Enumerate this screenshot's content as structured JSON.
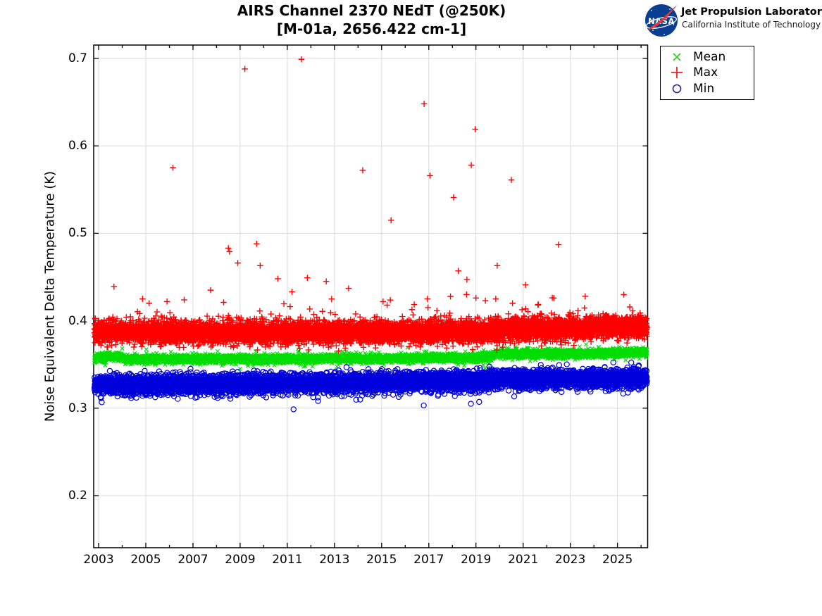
{
  "header": {
    "title": "AIRS Channel 2370 NEdT (@250K)",
    "subtitle": "[M-01a, 2656.422 cm-1]"
  },
  "logo": {
    "agency": "NASA",
    "org": "Jet Propulsion Laboratory",
    "institute": "California Institute of Technology"
  },
  "legend": {
    "items": [
      {
        "label": "Mean",
        "marker": "x",
        "color": "#33cc33"
      },
      {
        "label": "Max",
        "marker": "plus",
        "color": "#ee2222"
      },
      {
        "label": "Min",
        "marker": "circle",
        "color": "#22229e"
      }
    ]
  },
  "chart_data": {
    "type": "scatter",
    "title": "AIRS Channel 2370 NEdT (@250K)",
    "subtitle": "[M-01a, 2656.422 cm-1]",
    "xlabel": "",
    "ylabel": "Noise Equivalent Delta Temperature (K)",
    "xlim": [
      2002.79,
      2026.28
    ],
    "ylim": [
      0.1404,
      0.7153
    ],
    "grid": true,
    "grid_color": "#d9d9d9",
    "axis_color": "#000000",
    "legend_position": "outside-upper-right",
    "x_major_ticks": [
      {
        "v": 2003,
        "label": "2003"
      },
      {
        "v": 2005,
        "label": "2005"
      },
      {
        "v": 2007,
        "label": "2007"
      },
      {
        "v": 2009,
        "label": "2009"
      },
      {
        "v": 2011,
        "label": "2011"
      },
      {
        "v": 2013,
        "label": "2013"
      },
      {
        "v": 2015,
        "label": "2015"
      },
      {
        "v": 2017,
        "label": "2017"
      },
      {
        "v": 2019,
        "label": "2019"
      },
      {
        "v": 2021,
        "label": "2021"
      },
      {
        "v": 2023,
        "label": "2023"
      },
      {
        "v": 2025,
        "label": "2025"
      }
    ],
    "x_minor_ticks": [
      2004,
      2006,
      2008,
      2010,
      2012,
      2014,
      2016,
      2018,
      2020,
      2022,
      2024,
      2026
    ],
    "y_ticks": [
      {
        "v": 0.2,
        "label": "0.2"
      },
      {
        "v": 0.3,
        "label": "0.3"
      },
      {
        "v": 0.4,
        "label": "0.4"
      },
      {
        "v": 0.5,
        "label": "0.5"
      },
      {
        "v": 0.6,
        "label": "0.6"
      },
      {
        "v": 0.7,
        "label": "0.7"
      }
    ],
    "series": [
      {
        "name": "Mean",
        "marker": "x",
        "color": "#00dd00",
        "marker_size": 3.2,
        "line_width": 1.2,
        "band": {
          "x_start": 2002.82,
          "x_end": 2026.25,
          "points_per_year": 365,
          "sigma": 0.0022,
          "center": [
            [
              2002.82,
              0.356
            ],
            [
              2002.95,
              0.3585
            ],
            [
              2003.95,
              0.3588
            ],
            [
              2004.1,
              0.3562
            ],
            [
              2010.0,
              0.356
            ],
            [
              2015.0,
              0.3568
            ],
            [
              2019.6,
              0.3578
            ],
            [
              2019.8,
              0.362
            ],
            [
              2024.0,
              0.3625
            ],
            [
              2026.25,
              0.364
            ]
          ],
          "tails": [
            {
              "p": 0.03,
              "scale": 0.0035,
              "dir": 1
            },
            {
              "p": 0.03,
              "scale": 0.003,
              "dir": -1
            }
          ]
        },
        "outliers": []
      },
      {
        "name": "Max",
        "marker": "plus",
        "color": "#ff0000",
        "marker_size": 4.3,
        "line_width": 1.4,
        "band": {
          "x_start": 2002.82,
          "x_end": 2026.25,
          "points_per_year": 365,
          "sigma": 0.0058,
          "center": [
            [
              2002.82,
              0.388
            ],
            [
              2003.5,
              0.3872
            ],
            [
              2006.0,
              0.3868
            ],
            [
              2010.0,
              0.386
            ],
            [
              2014.0,
              0.3862
            ],
            [
              2018.0,
              0.3875
            ],
            [
              2019.9,
              0.388
            ],
            [
              2020.1,
              0.39
            ],
            [
              2023.0,
              0.391
            ],
            [
              2026.25,
              0.3925
            ]
          ],
          "tails": [
            {
              "p": 0.1,
              "scale": 0.005,
              "dir": 1
            },
            {
              "p": 0.012,
              "scale": 0.016,
              "dir": 1
            },
            {
              "p": 0.05,
              "scale": 0.004,
              "dir": -1
            }
          ]
        },
        "outliers": [
          [
            2003.65,
            0.439
          ],
          [
            2004.86,
            0.425
          ],
          [
            2005.14,
            0.42
          ],
          [
            2005.9,
            0.422
          ],
          [
            2006.15,
            0.575
          ],
          [
            2007.75,
            0.435
          ],
          [
            2008.3,
            0.421
          ],
          [
            2008.5,
            0.483
          ],
          [
            2008.55,
            0.479
          ],
          [
            2008.9,
            0.466
          ],
          [
            2009.2,
            0.688
          ],
          [
            2009.7,
            0.488
          ],
          [
            2009.85,
            0.463
          ],
          [
            2010.6,
            0.448
          ],
          [
            2011.2,
            0.433
          ],
          [
            2011.6,
            0.699
          ],
          [
            2011.85,
            0.449
          ],
          [
            2012.65,
            0.445
          ],
          [
            2013.6,
            0.437
          ],
          [
            2014.2,
            0.572
          ],
          [
            2015.06,
            0.422
          ],
          [
            2015.4,
            0.515
          ],
          [
            2016.8,
            0.648
          ],
          [
            2016.94,
            0.425
          ],
          [
            2017.05,
            0.566
          ],
          [
            2018.05,
            0.541
          ],
          [
            2018.25,
            0.457
          ],
          [
            2018.6,
            0.43
          ],
          [
            2018.8,
            0.578
          ],
          [
            2018.97,
            0.619
          ],
          [
            2019.0,
            0.426
          ],
          [
            2019.4,
            0.423
          ],
          [
            2019.9,
            0.463
          ],
          [
            2020.5,
            0.561
          ],
          [
            2020.55,
            0.42
          ],
          [
            2021.1,
            0.441
          ],
          [
            2022.3,
            0.426
          ],
          [
            2022.5,
            0.487
          ]
        ]
      },
      {
        "name": "Min",
        "marker": "circle",
        "color": "#0000dd",
        "marker_size": 3.6,
        "line_width": 1.2,
        "band": {
          "x_start": 2002.82,
          "x_end": 2026.25,
          "points_per_year": 365,
          "sigma": 0.005,
          "center": [
            [
              2002.82,
              0.3275
            ],
            [
              2003.5,
              0.327
            ],
            [
              2008.0,
              0.3278
            ],
            [
              2012.0,
              0.3288
            ],
            [
              2016.0,
              0.33
            ],
            [
              2019.5,
              0.3315
            ],
            [
              2020.2,
              0.333
            ],
            [
              2023.0,
              0.3338
            ],
            [
              2026.25,
              0.3345
            ]
          ],
          "tails": [
            {
              "p": 0.03,
              "scale": 0.007,
              "dir": -1
            },
            {
              "p": 0.02,
              "scale": 0.004,
              "dir": 1
            }
          ]
        },
        "outliers": [
          [
            2003.1,
            0.3115
          ],
          [
            2003.8,
            0.3135
          ],
          [
            2004.6,
            0.312
          ],
          [
            2005.4,
            0.3125
          ],
          [
            2006.2,
            0.3135
          ],
          [
            2007.1,
            0.312
          ],
          [
            2008.2,
            0.3145
          ],
          [
            2009.4,
            0.313
          ],
          [
            2010.8,
            0.3145
          ],
          [
            2012.1,
            0.3125
          ],
          [
            2013.3,
            0.3135
          ],
          [
            2014.6,
            0.314
          ],
          [
            2015.8,
            0.3155
          ]
        ]
      }
    ]
  }
}
